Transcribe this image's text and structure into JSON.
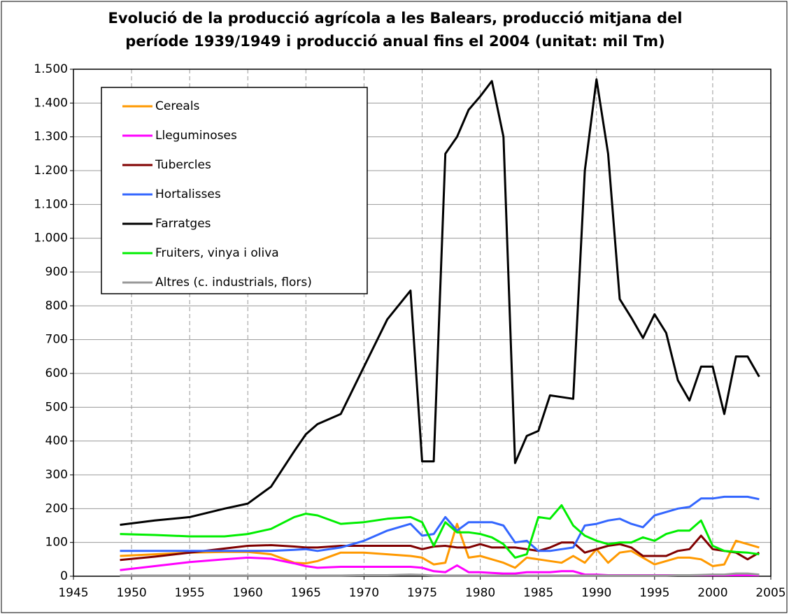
{
  "chart_data": {
    "type": "line",
    "title": [
      "Evolució de la producció agrícola a les Balears, producció mitjana del",
      "període 1939/1949 i producció anual fins el 2004 (unitat: mil Tm)"
    ],
    "x": [
      1949,
      1952,
      1955,
      1958,
      1960,
      1962,
      1964,
      1965,
      1966,
      1968,
      1970,
      1972,
      1974,
      1975,
      1976,
      1977,
      1978,
      1979,
      1980,
      1981,
      1982,
      1983,
      1984,
      1985,
      1986,
      1987,
      1988,
      1989,
      1990,
      1991,
      1992,
      1993,
      1994,
      1995,
      1996,
      1997,
      1998,
      1999,
      2000,
      2001,
      2002,
      2003,
      2004
    ],
    "series": [
      {
        "name": "Cereals",
        "color": "#ff9900",
        "values": [
          60,
          65,
          70,
          72,
          72,
          65,
          40,
          38,
          45,
          70,
          70,
          65,
          60,
          55,
          35,
          40,
          155,
          55,
          60,
          50,
          40,
          25,
          55,
          50,
          45,
          40,
          60,
          40,
          80,
          40,
          70,
          75,
          55,
          35,
          45,
          55,
          55,
          50,
          30,
          35,
          105,
          95,
          85
        ]
      },
      {
        "name": "Lleguminoses",
        "color": "#ff00ff",
        "values": [
          18,
          30,
          42,
          50,
          55,
          52,
          38,
          30,
          25,
          28,
          28,
          28,
          28,
          25,
          15,
          12,
          32,
          12,
          12,
          10,
          8,
          8,
          12,
          12,
          12,
          15,
          15,
          5,
          5,
          3,
          3,
          3,
          3,
          3,
          3,
          3,
          3,
          3,
          3,
          3,
          3,
          3,
          3
        ]
      },
      {
        "name": "Tubercles",
        "color": "#800000",
        "values": [
          48,
          58,
          70,
          82,
          90,
          92,
          88,
          85,
          85,
          90,
          90,
          90,
          90,
          80,
          88,
          90,
          85,
          85,
          95,
          85,
          85,
          85,
          80,
          75,
          85,
          100,
          100,
          70,
          80,
          90,
          95,
          85,
          60,
          60,
          60,
          75,
          80,
          120,
          80,
          75,
          70,
          50,
          70
        ]
      },
      {
        "name": "Hortalisses",
        "color": "#3366ff",
        "values": [
          75,
          75,
          75,
          75,
          75,
          75,
          78,
          80,
          75,
          85,
          105,
          135,
          155,
          120,
          125,
          175,
          135,
          160,
          160,
          160,
          150,
          100,
          105,
          75,
          75,
          80,
          85,
          150,
          155,
          165,
          170,
          155,
          145,
          180,
          190,
          200,
          205,
          230,
          230,
          235,
          235,
          235,
          228
        ]
      },
      {
        "name": "Farratges",
        "color": "#000000",
        "values": [
          152,
          165,
          175,
          200,
          215,
          265,
          370,
          420,
          450,
          480,
          620,
          760,
          845,
          340,
          340,
          1250,
          1300,
          1380,
          1420,
          1465,
          1300,
          335,
          415,
          430,
          535,
          530,
          525,
          1200,
          1470,
          1250,
          820,
          765,
          705,
          775,
          720,
          580,
          520,
          620,
          620,
          480,
          650,
          650,
          590
        ]
      },
      {
        "name": "Fruiters, vinya i oliva",
        "color": "#00ee00",
        "values": [
          125,
          122,
          118,
          118,
          125,
          140,
          175,
          185,
          180,
          155,
          160,
          170,
          175,
          160,
          90,
          160,
          130,
          130,
          125,
          115,
          95,
          55,
          65,
          175,
          170,
          210,
          150,
          120,
          105,
          95,
          100,
          100,
          115,
          105,
          125,
          135,
          135,
          165,
          90,
          75,
          72,
          70,
          65
        ]
      },
      {
        "name": "Altres (c. industrials, flors)",
        "color": "#999999",
        "values": [
          2,
          2,
          2,
          2,
          2,
          2,
          2,
          2,
          2,
          2,
          3,
          3,
          5,
          4,
          2,
          2,
          2,
          2,
          2,
          2,
          2,
          2,
          2,
          2,
          2,
          2,
          2,
          2,
          2,
          2,
          2,
          2,
          2,
          2,
          2,
          3,
          3,
          4,
          5,
          5,
          8,
          8,
          5
        ]
      }
    ],
    "xlim": [
      1945,
      2005
    ],
    "xticks": [
      1945,
      1950,
      1955,
      1960,
      1965,
      1970,
      1975,
      1980,
      1985,
      1990,
      1995,
      2000,
      2005
    ],
    "ylim": [
      0,
      1500
    ],
    "yticks": [
      0,
      100,
      200,
      300,
      400,
      500,
      600,
      700,
      800,
      900,
      {
        "value": 1000,
        "label": "1.000"
      },
      {
        "value": 1100,
        "label": "1.100"
      },
      {
        "value": 1200,
        "label": "1.200"
      },
      {
        "value": 1300,
        "label": "1.300"
      },
      {
        "value": 1400,
        "label": "1.400"
      },
      {
        "value": 1500,
        "label": "1.500"
      }
    ],
    "grid": true
  }
}
